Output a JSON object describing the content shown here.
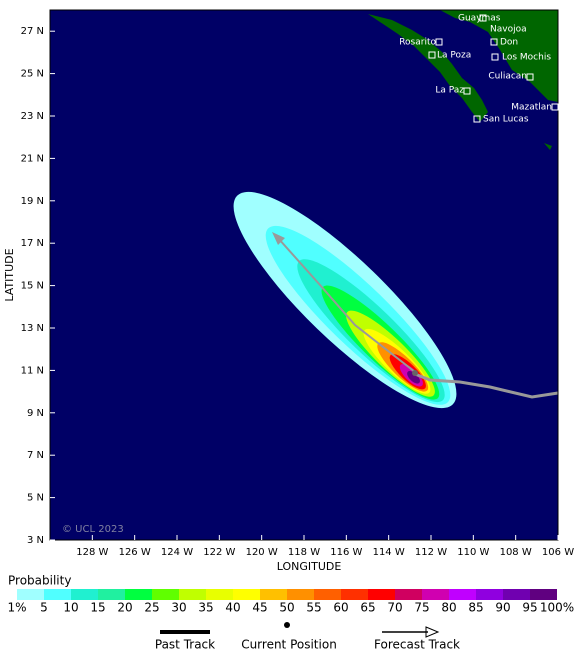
{
  "map": {
    "xlim": [
      -130,
      -106
    ],
    "ylim": [
      3,
      28
    ],
    "xticks": [
      {
        "value": -128,
        "label": "128 W"
      },
      {
        "value": -126,
        "label": "126 W"
      },
      {
        "value": -124,
        "label": "124 W"
      },
      {
        "value": -122,
        "label": "122 W"
      },
      {
        "value": -120,
        "label": "120 W"
      },
      {
        "value": -118,
        "label": "118 W"
      },
      {
        "value": -116,
        "label": "116 W"
      },
      {
        "value": -114,
        "label": "114 W"
      },
      {
        "value": -112,
        "label": "112 W"
      },
      {
        "value": -110,
        "label": "110 W"
      },
      {
        "value": -108,
        "label": "108 W"
      },
      {
        "value": -106,
        "label": "106 W"
      }
    ],
    "yticks": [
      {
        "value": 27,
        "label": "27 N"
      },
      {
        "value": 25,
        "label": "25 N"
      },
      {
        "value": 23,
        "label": "23 N"
      },
      {
        "value": 21,
        "label": "21 N"
      },
      {
        "value": 19,
        "label": "19 N"
      },
      {
        "value": 17,
        "label": "17 N"
      },
      {
        "value": 15,
        "label": "15 N"
      },
      {
        "value": 13,
        "label": "13 N"
      },
      {
        "value": 11,
        "label": "11 N"
      },
      {
        "value": 9,
        "label": "9 N"
      },
      {
        "value": 7,
        "label": "7 N"
      },
      {
        "value": 5,
        "label": "5 N"
      },
      {
        "value": 3,
        "label": "3 N"
      }
    ],
    "xlabel": "LONGITUDE",
    "ylabel": "LATITUDE",
    "copyright": "© UCL 2023",
    "cities": [
      "Guaymas",
      "Navojoa",
      "Rosarito",
      "Don",
      "La Poza",
      "Los Mochis",
      "Culiacan",
      "La Paz",
      "Mazatlan",
      "San Lucas"
    ]
  },
  "colorbar": {
    "title": "Probability",
    "colors": [
      "#a0ffff",
      "#50ffff",
      "#20f0d0",
      "#20f0a0",
      "#00ff40",
      "#60ff00",
      "#c0ff00",
      "#e8ff00",
      "#ffff00",
      "#ffc000",
      "#ff9000",
      "#ff6000",
      "#ff3000",
      "#ff0000",
      "#d00060",
      "#d000b0",
      "#c000ff",
      "#9000e0",
      "#7000b0",
      "#600080"
    ],
    "labels": [
      "1%",
      "5",
      "10",
      "15",
      "20",
      "25",
      "30",
      "35",
      "40",
      "45",
      "50",
      "55",
      "60",
      "65",
      "70",
      "75",
      "80",
      "85",
      "90",
      "95",
      "100%"
    ]
  },
  "legend": [
    "Past Track",
    "Current Position",
    "Forecast Track"
  ]
}
